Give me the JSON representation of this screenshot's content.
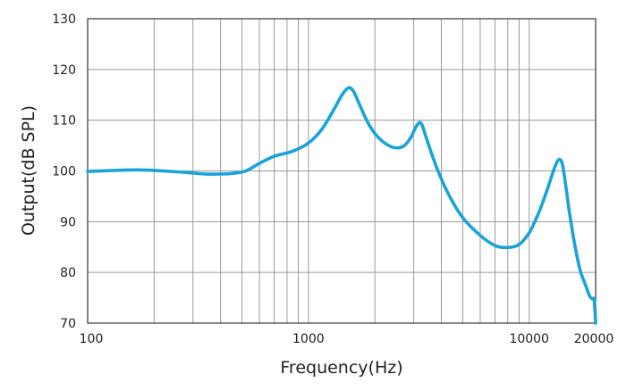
{
  "chart_data": {
    "type": "line",
    "title": "",
    "xlabel": "Frequency(Hz)",
    "ylabel": "Output(dB SPL)",
    "xscale": "log",
    "xlim": [
      100,
      20000
    ],
    "ylim": [
      70,
      130
    ],
    "xticks": [
      {
        "value": 100,
        "label": "100"
      },
      {
        "value": 1000,
        "label": "1000"
      },
      {
        "value": 10000,
        "label": "10000"
      },
      {
        "value": 20000,
        "label": "20000"
      }
    ],
    "yticks": [
      70,
      80,
      90,
      100,
      110,
      120,
      130
    ],
    "grid": true,
    "line_color": "#1aa3d9",
    "series": [
      {
        "x": [
          100,
          130,
          170,
          220,
          280,
          340,
          400,
          450,
          520,
          600,
          700,
          850,
          1000,
          1150,
          1300,
          1420,
          1520,
          1600,
          1700,
          1850,
          2000,
          2200,
          2450,
          2700,
          2900,
          3100,
          3250,
          3450,
          3800,
          4300,
          5000,
          6000,
          7000,
          8000,
          9000,
          10000,
          10600,
          11200,
          12000,
          13000,
          13600,
          14100,
          14600,
          15200,
          16000,
          17000,
          18000,
          18800,
          19300,
          19700,
          20000
        ],
        "y": [
          99.9,
          100.1,
          100.2,
          100.0,
          99.7,
          99.4,
          99.4,
          99.5,
          100.0,
          101.5,
          102.9,
          103.9,
          105.5,
          108.2,
          112.0,
          115.0,
          116.4,
          115.7,
          113.2,
          109.7,
          107.4,
          105.6,
          104.6,
          104.9,
          106.5,
          109.0,
          109.3,
          106.0,
          100.8,
          95.5,
          90.8,
          87.3,
          85.3,
          84.9,
          85.5,
          87.8,
          90.0,
          92.4,
          96.0,
          100.5,
          102.2,
          101.5,
          97.5,
          92.0,
          86.0,
          80.5,
          77.5,
          75.3,
          74.8,
          74.5,
          70.0
        ]
      }
    ]
  }
}
